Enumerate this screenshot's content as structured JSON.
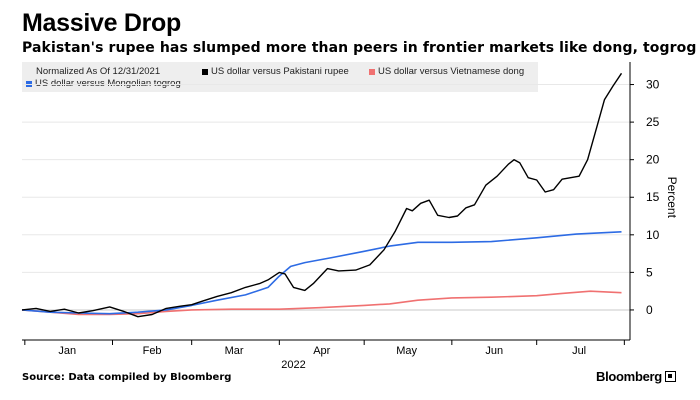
{
  "title": "Massive Drop",
  "subtitle": "Pakistan's rupee has slumped more than peers in frontier markets like dong, togrog",
  "source": "Source: Data compiled by Bloomberg",
  "brand": "Bloomberg",
  "legend": {
    "note": "Normalized As Of 12/31/2021"
  },
  "chart_data": {
    "type": "line",
    "ylabel": "Percent",
    "xlabel": "2022",
    "ylim": [
      -4,
      33
    ],
    "yticks": [
      0,
      5,
      10,
      15,
      20,
      25,
      30
    ],
    "month_labels": [
      "Jan",
      "Feb",
      "Mar",
      "Apr",
      "May",
      "Jun",
      "Jul"
    ],
    "grid": true,
    "legend_position": "top-left",
    "series": [
      {
        "name": "US dollar versus Pakistani rupee",
        "color": "#000000",
        "points": [
          [
            "2021-12-31",
            0
          ],
          [
            "2022-01-05",
            0.2
          ],
          [
            "2022-01-10",
            -0.2
          ],
          [
            "2022-01-15",
            0.1
          ],
          [
            "2022-01-20",
            -0.4
          ],
          [
            "2022-01-25",
            -0.1
          ],
          [
            "2022-01-31",
            0.4
          ],
          [
            "2022-02-05",
            -0.2
          ],
          [
            "2022-02-10",
            -0.9
          ],
          [
            "2022-02-15",
            -0.6
          ],
          [
            "2022-02-20",
            0.2
          ],
          [
            "2022-02-25",
            0.5
          ],
          [
            "2022-03-01",
            0.7
          ],
          [
            "2022-03-05",
            1.2
          ],
          [
            "2022-03-10",
            1.8
          ],
          [
            "2022-03-15",
            2.3
          ],
          [
            "2022-03-20",
            3.0
          ],
          [
            "2022-03-25",
            3.5
          ],
          [
            "2022-03-28",
            4.0
          ],
          [
            "2022-04-01",
            5.0
          ],
          [
            "2022-04-03",
            4.8
          ],
          [
            "2022-04-06",
            3.0
          ],
          [
            "2022-04-10",
            2.6
          ],
          [
            "2022-04-13",
            3.5
          ],
          [
            "2022-04-18",
            5.5
          ],
          [
            "2022-04-22",
            5.2
          ],
          [
            "2022-04-28",
            5.3
          ],
          [
            "2022-05-03",
            6.0
          ],
          [
            "2022-05-08",
            8.0
          ],
          [
            "2022-05-12",
            10.5
          ],
          [
            "2022-05-16",
            13.5
          ],
          [
            "2022-05-18",
            13.2
          ],
          [
            "2022-05-21",
            14.2
          ],
          [
            "2022-05-24",
            14.6
          ],
          [
            "2022-05-27",
            12.6
          ],
          [
            "2022-05-31",
            12.3
          ],
          [
            "2022-06-03",
            12.5
          ],
          [
            "2022-06-06",
            13.6
          ],
          [
            "2022-06-09",
            14.0
          ],
          [
            "2022-06-13",
            16.6
          ],
          [
            "2022-06-17",
            17.8
          ],
          [
            "2022-06-21",
            19.4
          ],
          [
            "2022-06-23",
            20.0
          ],
          [
            "2022-06-25",
            19.6
          ],
          [
            "2022-06-28",
            17.6
          ],
          [
            "2022-07-01",
            17.3
          ],
          [
            "2022-07-04",
            15.7
          ],
          [
            "2022-07-07",
            16.0
          ],
          [
            "2022-07-10",
            17.4
          ],
          [
            "2022-07-13",
            17.6
          ],
          [
            "2022-07-16",
            17.8
          ],
          [
            "2022-07-19",
            20.0
          ],
          [
            "2022-07-22",
            24.0
          ],
          [
            "2022-07-25",
            28.0
          ],
          [
            "2022-07-28",
            29.8
          ],
          [
            "2022-07-31",
            31.5
          ]
        ]
      },
      {
        "name": "US dollar versus Vietnamese dong",
        "color": "#f07171",
        "points": [
          [
            "2021-12-31",
            0
          ],
          [
            "2022-01-10",
            -0.3
          ],
          [
            "2022-01-20",
            -0.6
          ],
          [
            "2022-01-31",
            -0.6
          ],
          [
            "2022-02-10",
            -0.5
          ],
          [
            "2022-02-20",
            -0.2
          ],
          [
            "2022-03-01",
            0
          ],
          [
            "2022-03-15",
            0.1
          ],
          [
            "2022-04-01",
            0.1
          ],
          [
            "2022-04-15",
            0.3
          ],
          [
            "2022-05-01",
            0.6
          ],
          [
            "2022-05-10",
            0.8
          ],
          [
            "2022-05-20",
            1.3
          ],
          [
            "2022-06-01",
            1.6
          ],
          [
            "2022-06-15",
            1.7
          ],
          [
            "2022-07-01",
            1.9
          ],
          [
            "2022-07-10",
            2.2
          ],
          [
            "2022-07-20",
            2.5
          ],
          [
            "2022-07-31",
            2.3
          ]
        ]
      },
      {
        "name": "US dollar versus Mongolian togrog",
        "color": "#2d6be4",
        "points": [
          [
            "2021-12-31",
            0
          ],
          [
            "2022-01-10",
            -0.3
          ],
          [
            "2022-01-20",
            -0.4
          ],
          [
            "2022-01-31",
            -0.5
          ],
          [
            "2022-02-10",
            -0.3
          ],
          [
            "2022-02-20",
            0
          ],
          [
            "2022-03-01",
            0.6
          ],
          [
            "2022-03-10",
            1.3
          ],
          [
            "2022-03-20",
            2.0
          ],
          [
            "2022-03-28",
            3.0
          ],
          [
            "2022-04-01",
            4.5
          ],
          [
            "2022-04-05",
            5.8
          ],
          [
            "2022-04-10",
            6.3
          ],
          [
            "2022-04-20",
            7.0
          ],
          [
            "2022-05-01",
            7.8
          ],
          [
            "2022-05-10",
            8.5
          ],
          [
            "2022-05-20",
            9.0
          ],
          [
            "2022-06-01",
            9.0
          ],
          [
            "2022-06-15",
            9.1
          ],
          [
            "2022-07-01",
            9.6
          ],
          [
            "2022-07-15",
            10.1
          ],
          [
            "2022-07-31",
            10.4
          ]
        ]
      }
    ]
  }
}
